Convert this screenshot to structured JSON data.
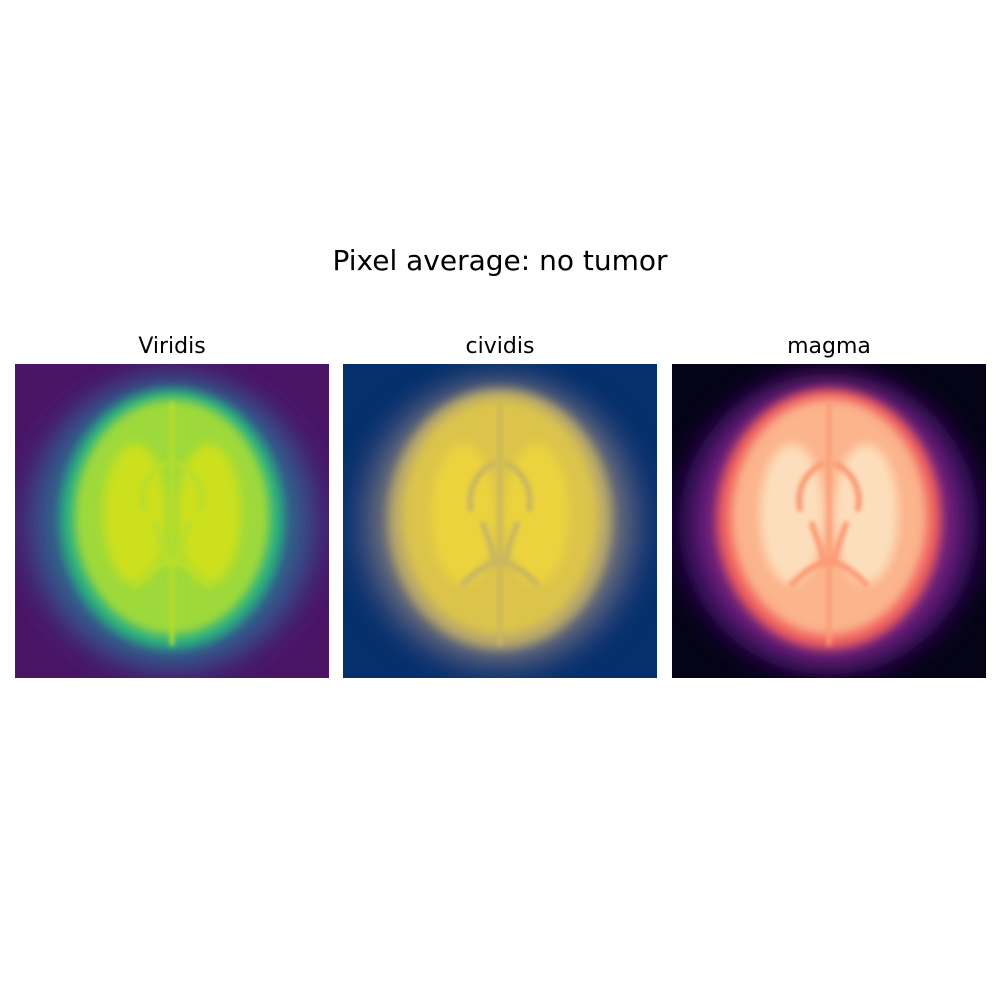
{
  "figure": {
    "title": "Pixel average: no tumor"
  },
  "panels": [
    {
      "title": "Viridis",
      "colormap": "viridis",
      "colors": {
        "background": "#4a1565",
        "halo_outer": "#3b3f86",
        "halo_mid": "#2f6e8e",
        "rim": "#2ab07f",
        "tissue": "#9ed93a",
        "core": "#d8e219",
        "structure": "#b9de2b"
      }
    },
    {
      "title": "cividis",
      "colormap": "cividis",
      "colors": {
        "background": "#05306b",
        "halo_outer": "#2a417a",
        "halo_mid": "#7b7a77",
        "rim": "#b8a86a",
        "tissue": "#dcc44c",
        "core": "#f0d73a",
        "structure": "#c9b760"
      }
    },
    {
      "title": "magma",
      "colormap": "magma",
      "colors": {
        "background": "#050416",
        "halo_outer": "#3c0f70",
        "halo_mid": "#8c2981",
        "rim": "#f0605d",
        "tissue": "#fbb48c",
        "core": "#fde9c8",
        "structure": "#fc9a75"
      }
    }
  ]
}
